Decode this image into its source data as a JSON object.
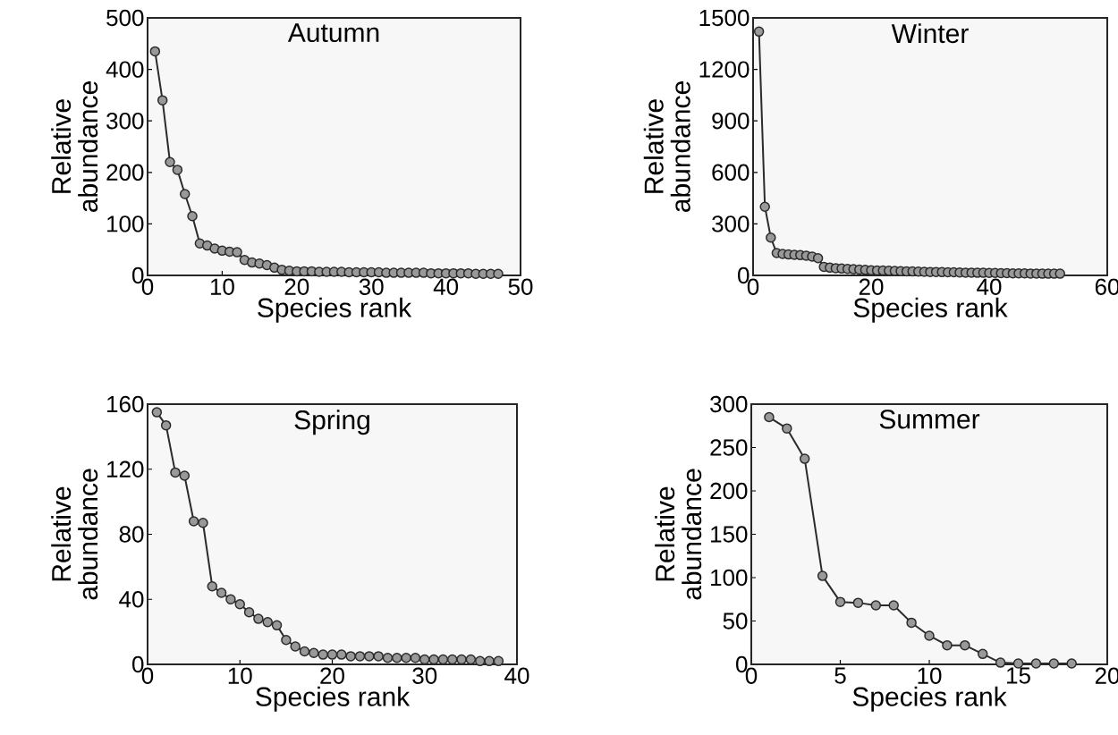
{
  "chart_data": [
    {
      "type": "line",
      "title": "Autumn",
      "xlabel": "Species rank",
      "ylabel": "Relative abundance",
      "color": "#2b2b2b",
      "marker": "circle",
      "line_style": "solid",
      "x": [
        1,
        2,
        3,
        4,
        5,
        6,
        7,
        8,
        9,
        10,
        11,
        12,
        13,
        14,
        15,
        16,
        17,
        18,
        19,
        20,
        21,
        22,
        23,
        24,
        25,
        26,
        27,
        28,
        29,
        30,
        31,
        32,
        33,
        34,
        35,
        36,
        37,
        38,
        39,
        40,
        41,
        42,
        43,
        44,
        45,
        46,
        47
      ],
      "values": [
        435,
        340,
        220,
        205,
        158,
        115,
        62,
        58,
        52,
        48,
        46,
        45,
        30,
        25,
        23,
        20,
        15,
        11,
        9,
        8,
        8,
        8,
        7,
        7,
        7,
        7,
        6,
        6,
        6,
        6,
        6,
        5,
        5,
        5,
        5,
        5,
        5,
        4,
        4,
        4,
        4,
        4,
        4,
        3,
        3,
        3,
        3
      ],
      "xlim": [
        0,
        50
      ],
      "xticks": [
        0,
        10,
        20,
        30,
        40,
        50
      ],
      "ylim": [
        0,
        500
      ],
      "yticks": [
        0,
        100,
        200,
        300,
        400,
        500
      ]
    },
    {
      "type": "line",
      "title": "Winter",
      "xlabel": "Species rank",
      "ylabel": "Relative abundance",
      "color": "#2b2b2b",
      "marker": "circle",
      "line_style": "solid",
      "x": [
        1,
        2,
        3,
        4,
        5,
        6,
        7,
        8,
        9,
        10,
        11,
        12,
        13,
        14,
        15,
        16,
        17,
        18,
        19,
        20,
        21,
        22,
        23,
        24,
        25,
        26,
        27,
        28,
        29,
        30,
        31,
        32,
        33,
        34,
        35,
        36,
        37,
        38,
        39,
        40,
        41,
        42,
        43,
        44,
        45,
        46,
        47,
        48,
        49,
        50,
        51,
        52
      ],
      "values": [
        1420,
        400,
        220,
        130,
        125,
        122,
        120,
        118,
        115,
        110,
        100,
        50,
        45,
        42,
        40,
        38,
        36,
        34,
        32,
        30,
        29,
        28,
        27,
        26,
        25,
        24,
        23,
        22,
        21,
        20,
        20,
        19,
        18,
        18,
        17,
        16,
        16,
        15,
        15,
        14,
        14,
        13,
        13,
        12,
        12,
        12,
        11,
        11,
        10,
        10,
        10,
        10
      ],
      "xlim": [
        0,
        60
      ],
      "xticks": [
        0,
        20,
        40,
        60
      ],
      "ylim": [
        0,
        1500
      ],
      "yticks": [
        0,
        300,
        600,
        900,
        1200,
        1500
      ]
    },
    {
      "type": "line",
      "title": "Spring",
      "xlabel": "Species rank",
      "ylabel": "Relative abundance",
      "color": "#2b2b2b",
      "marker": "circle",
      "line_style": "solid",
      "x": [
        1,
        2,
        3,
        4,
        5,
        6,
        7,
        8,
        9,
        10,
        11,
        12,
        13,
        14,
        15,
        16,
        17,
        18,
        19,
        20,
        21,
        22,
        23,
        24,
        25,
        26,
        27,
        28,
        29,
        30,
        31,
        32,
        33,
        34,
        35,
        36,
        37,
        38
      ],
      "values": [
        155,
        147,
        118,
        116,
        88,
        87,
        48,
        44,
        40,
        37,
        32,
        28,
        26,
        24,
        15,
        11,
        8,
        7,
        6,
        6,
        6,
        5,
        5,
        5,
        5,
        4,
        4,
        4,
        4,
        3,
        3,
        3,
        3,
        3,
        3,
        2,
        2,
        2
      ],
      "xlim": [
        0,
        40
      ],
      "xticks": [
        0,
        10,
        20,
        30,
        40
      ],
      "ylim": [
        0,
        160
      ],
      "yticks": [
        0,
        40,
        80,
        120,
        160
      ]
    },
    {
      "type": "line",
      "title": "Summer",
      "xlabel": "Species rank",
      "ylabel": "Relative abundance",
      "color": "#2b2b2b",
      "marker": "circle",
      "line_style": "solid",
      "x": [
        1,
        2,
        3,
        4,
        5,
        6,
        7,
        8,
        9,
        10,
        11,
        12,
        13,
        14,
        15,
        16,
        17,
        18
      ],
      "values": [
        285,
        272,
        237,
        102,
        72,
        71,
        68,
        68,
        48,
        33,
        22,
        22,
        12,
        2,
        1,
        1,
        1,
        1
      ],
      "xlim": [
        0,
        20
      ],
      "xticks": [
        0,
        5,
        10,
        15,
        20
      ],
      "ylim": [
        0,
        300
      ],
      "yticks": [
        0,
        50,
        100,
        150,
        200,
        250,
        300
      ]
    }
  ]
}
